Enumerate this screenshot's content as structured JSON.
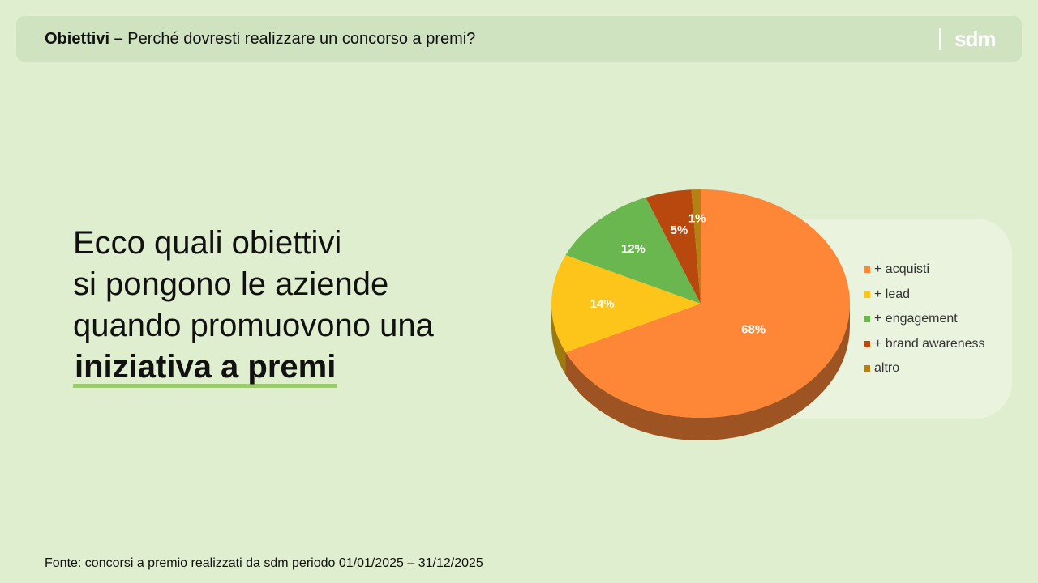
{
  "header": {
    "title_bold": "Obiettivi –",
    "title_text": "Perché dovresti realizzare un concorso a premi?",
    "logo_text": "sdm"
  },
  "headline": {
    "line1": "Ecco quali obiettivi",
    "line2": "si pongono le aziende",
    "line3": "quando promuovono una",
    "emphasis": "iniziativa a premi"
  },
  "chart_data": {
    "type": "pie",
    "categories": [
      "+ acquisti",
      "+ lead",
      "+ engagement",
      "+ brand awareness",
      "altro"
    ],
    "values": [
      68,
      14,
      12,
      5,
      1
    ],
    "labels": [
      "68%",
      "14%",
      "12%",
      "5%",
      "1%"
    ],
    "colors": [
      "#fd8637",
      "#fdc519",
      "#6ab74f",
      "#b8480e",
      "#b38212"
    ],
    "legend_position": "right"
  },
  "footer": {
    "source": "Fonte: concorsi a premio realizzati da sdm periodo 01/01/2025 – 31/12/2025"
  }
}
